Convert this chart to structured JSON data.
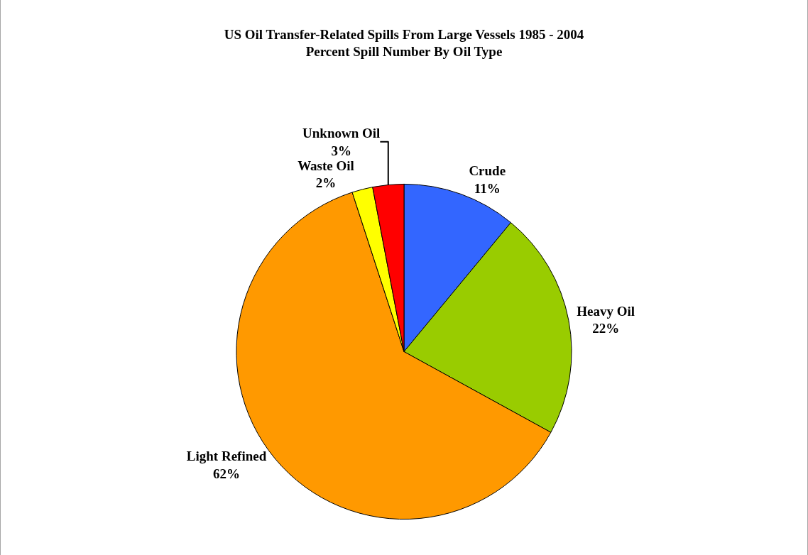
{
  "chart_data": {
    "type": "pie",
    "title": "US Oil Transfer-Related Spills From Large Vessels 1985 - 2004",
    "subtitle": "Percent Spill Number By Oil Type",
    "categories": [
      "Crude",
      "Heavy Oil",
      "Light Refined",
      "Waste Oil",
      "Unknown Oil"
    ],
    "values": [
      11,
      22,
      62,
      2,
      3
    ],
    "colors": [
      "#3366ff",
      "#99cc00",
      "#ff9900",
      "#ffff00",
      "#ff0000"
    ],
    "value_labels": [
      "11%",
      "22%",
      "62%",
      "2%",
      "3%"
    ],
    "legend": false
  }
}
